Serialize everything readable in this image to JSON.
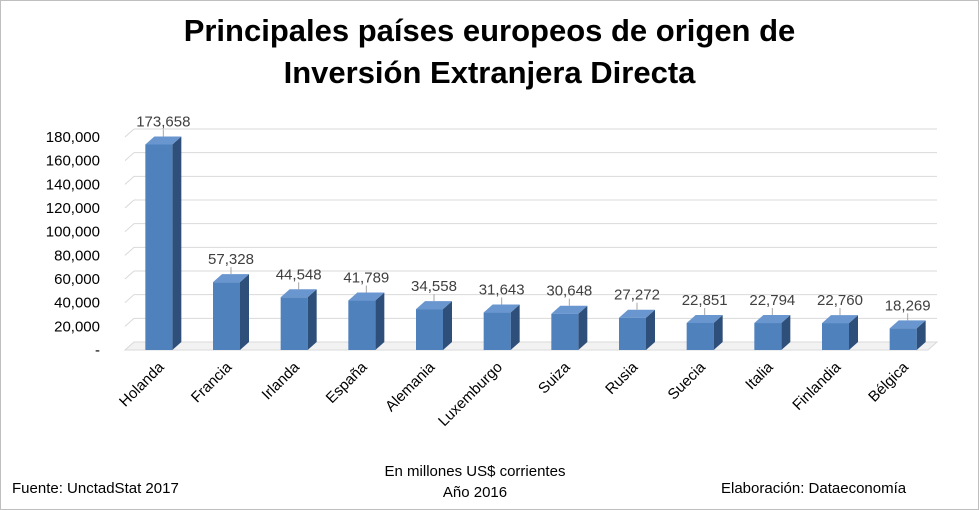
{
  "chart_data": {
    "type": "bar",
    "title_lines": [
      "Principales países europeos de origen de",
      "Inversión Extranjera Directa"
    ],
    "categories": [
      "Holanda",
      "Francia",
      "Irlanda",
      "España",
      "Alemania",
      "Luxemburgo",
      "Suiza",
      "Rusia",
      "Suecia",
      "Italia",
      "Finlandia",
      "Bélgica"
    ],
    "values": [
      173658,
      57328,
      44548,
      41789,
      34558,
      31643,
      30648,
      27272,
      22851,
      22794,
      22760,
      18269
    ],
    "value_labels": [
      "173,658",
      "57,328",
      "44,548",
      "41,789",
      "34,558",
      "31,643",
      "30,648",
      "27,272",
      "22,851",
      "22,794",
      "22,760",
      "18,269"
    ],
    "y_ticks": [
      0,
      20000,
      40000,
      60000,
      80000,
      100000,
      120000,
      140000,
      160000,
      180000
    ],
    "y_tick_labels": [
      "-",
      "20,000",
      "40,000",
      "60,000",
      "80,000",
      "100,000",
      "120,000",
      "140,000",
      "160,000",
      "180,000"
    ],
    "ylim": [
      0,
      180000
    ],
    "grid": true,
    "bar_color": "#4f81bd",
    "bar_side_color": "#2e4f7a",
    "bar_top_color": "#6a96cf"
  },
  "notes": {
    "units": "En millones US$ corrientes",
    "year": "Año 2016",
    "source": "Fuente: UnctadStat 2017",
    "credit": "Elaboración: Dataeconomía"
  }
}
